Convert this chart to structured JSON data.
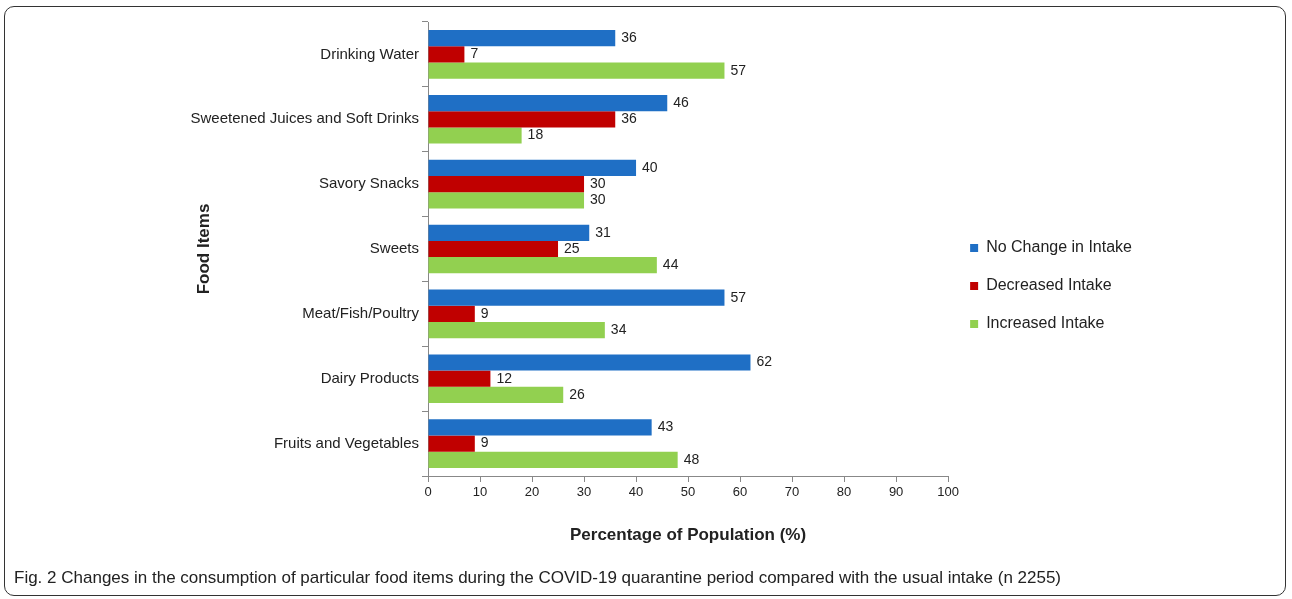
{
  "chart_data": {
    "type": "bar",
    "orientation": "horizontal",
    "xlabel": "Percentage of Population (%)",
    "ylabel": "Food Items",
    "categories": [
      "Drinking Water",
      "Sweetened Juices and Soft Drinks",
      "Savory Snacks",
      "Sweets",
      "Meat/Fish/Poultry",
      "Dairy Products",
      "Fruits and Vegetables"
    ],
    "series": [
      {
        "name": "No Change in Intake",
        "color": "#1f6fc5",
        "values": [
          36,
          46,
          40,
          31,
          57,
          62,
          43
        ]
      },
      {
        "name": "Decreased Intake",
        "color": "#c00000",
        "values": [
          7,
          36,
          30,
          25,
          9,
          12,
          9
        ]
      },
      {
        "name": "Increased Intake",
        "color": "#92d050",
        "values": [
          57,
          18,
          30,
          44,
          34,
          26,
          48
        ]
      }
    ],
    "xlim": [
      0,
      100
    ],
    "xticks": [
      0,
      10,
      20,
      30,
      40,
      50,
      60,
      70,
      80,
      90,
      100
    ],
    "data_labels": true,
    "legend": "right",
    "annotations": [
      "Fig. 2 Changes in the consumption of particular food items during the COVID-19 quarantine period compared with the usual intake (n 2255)"
    ]
  }
}
